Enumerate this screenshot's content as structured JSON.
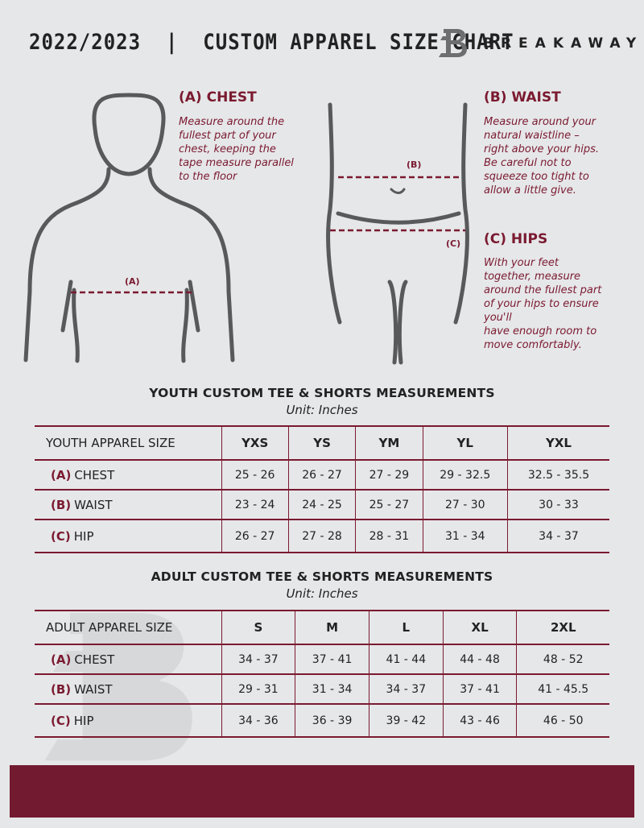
{
  "header": {
    "title": "2022/2023  |  CUSTOM APPAREL SIZE CHART",
    "brand": "BREAKAWAY",
    "logo_letter": "B"
  },
  "colors": {
    "accent": "#7a1a30",
    "background": "#e6e7e9",
    "figure": "#58595b"
  },
  "chest": {
    "heading": "(A) CHEST",
    "lines": [
      "Measure around the",
      "fullest part of your",
      "chest, keeping the",
      "tape measure parallel",
      "to the floor"
    ],
    "marker": "(A)"
  },
  "waist": {
    "heading": "(B) WAIST",
    "lines": [
      "Measure around your",
      "natural waistline –",
      "right above your hips.",
      "Be careful not to",
      "squeeze too tight to",
      "allow a little give."
    ],
    "marker": "(B)"
  },
  "hips": {
    "heading": "(C) HIPS",
    "lines": [
      "With your feet",
      "together, measure",
      "around the fullest part",
      "of your hips to ensure",
      "you'll",
      "have enough room to",
      "move comfortably."
    ],
    "marker": "(C)"
  },
  "youth": {
    "title": "YOUTH CUSTOM TEE & SHORTS MEASUREMENTS",
    "unit": "Unit: Inches",
    "header": "YOUTH APPAREL SIZE",
    "sizes": [
      "YXS",
      "YS",
      "YM",
      "YL",
      "YXL"
    ],
    "rows": [
      {
        "letter": "(A)",
        "label": "CHEST",
        "values": [
          "25 - 26",
          "26 - 27",
          "27 - 29",
          "29 - 32.5",
          "32.5 - 35.5"
        ]
      },
      {
        "letter": "(B)",
        "label": "WAIST",
        "values": [
          "23 - 24",
          "24 - 25",
          "25 - 27",
          "27 - 30",
          "30 - 33"
        ]
      },
      {
        "letter": "(C)",
        "label": "HIP",
        "values": [
          "26 - 27",
          "27 - 28",
          "28 - 31",
          "31 - 34",
          "34 - 37"
        ]
      }
    ]
  },
  "adult": {
    "title": "ADULT CUSTOM TEE & SHORTS MEASUREMENTS",
    "unit": "Unit: Inches",
    "header": "ADULT APPAREL SIZE",
    "sizes": [
      "S",
      "M",
      "L",
      "XL",
      "2XL"
    ],
    "rows": [
      {
        "letter": "(A)",
        "label": "CHEST",
        "values": [
          "34 - 37",
          "37 - 41",
          "41 - 44",
          "44 - 48",
          "48 - 52"
        ]
      },
      {
        "letter": "(B)",
        "label": "WAIST",
        "values": [
          "29 - 31",
          "31 - 34",
          "34 - 37",
          "37 - 41",
          "41 - 45.5"
        ]
      },
      {
        "letter": "(C)",
        "label": "HIP",
        "values": [
          "34 - 36",
          "36 - 39",
          "39 - 42",
          "43 - 46",
          "46 - 50"
        ]
      }
    ]
  }
}
